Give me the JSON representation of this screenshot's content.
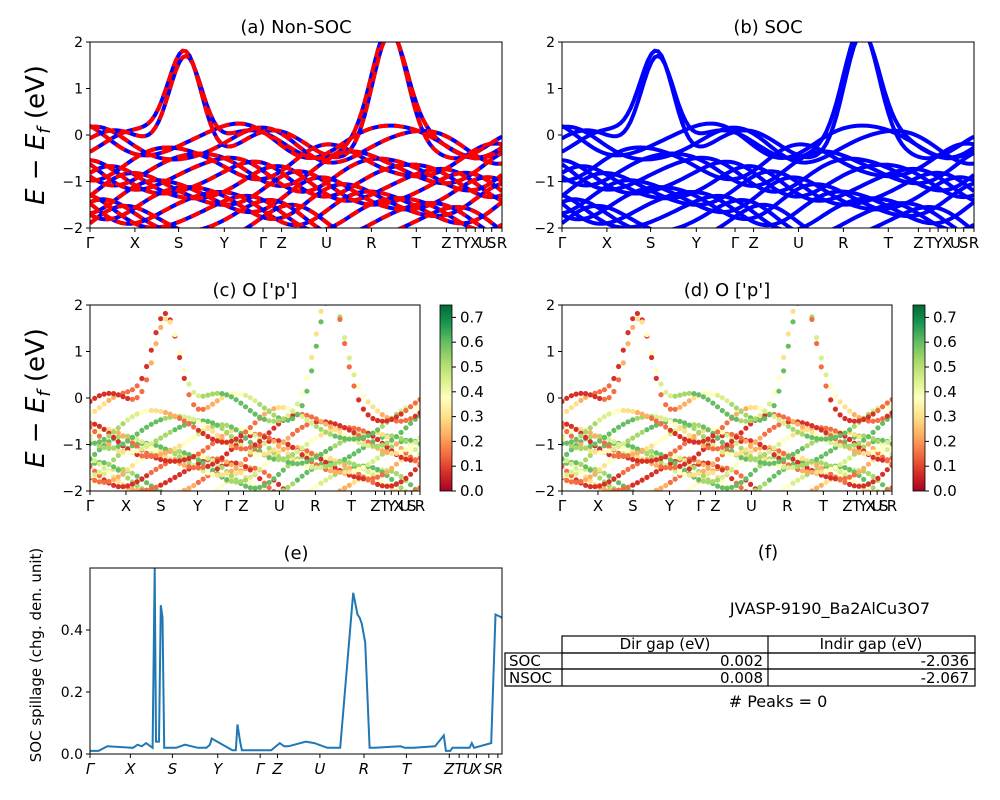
{
  "figure": {
    "ylabel_math": "E − E",
    "ylabel_sub": "f",
    "ylabel_unit": " (eV)"
  },
  "chart_data": [
    {
      "id": "a",
      "type": "line",
      "title": "(a) Non-SOC",
      "ylim": [
        -2,
        2
      ],
      "yticks": [
        "−2",
        "−1",
        "0",
        "1",
        "2"
      ],
      "xticks": [
        "Γ",
        "X",
        "S",
        "Y",
        "Γ",
        "Z",
        "U",
        "R",
        "T",
        "Z",
        "T",
        "Y",
        "X",
        "U",
        "S",
        "R"
      ],
      "kpath_positions": [
        0,
        1,
        2,
        3,
        4,
        4.3,
        5.3,
        6.3,
        7.3,
        8.3,
        8.55,
        8.75,
        8.95,
        9.15,
        9.35,
        9.5
      ],
      "series": [
        {
          "name": "",
          "color": "#ff0000",
          "style": "solid"
        },
        {
          "name": "",
          "color": "#0000ff",
          "style": "dashed"
        }
      ],
      "colors": {
        "primary": "#ff0000",
        "secondary": "#0000ff"
      }
    },
    {
      "id": "b",
      "type": "line",
      "title": "(b) SOC",
      "ylim": [
        -2,
        2
      ],
      "yticks": [
        "−2",
        "−1",
        "0",
        "1",
        "2"
      ],
      "xticks": [
        "Γ",
        "X",
        "S",
        "Y",
        "Γ",
        "Z",
        "U",
        "R",
        "T",
        "Z",
        "T",
        "Y",
        "X",
        "U",
        "S",
        "R"
      ],
      "colors": {
        "primary": "#0000ff"
      }
    },
    {
      "id": "c",
      "type": "scatter",
      "title": "(c)  O ['p']",
      "ylim": [
        -2,
        2
      ],
      "yticks": [
        "−2",
        "−1",
        "0",
        "1",
        "2"
      ],
      "xticks": [
        "Γ",
        "X",
        "S",
        "Y",
        "Γ",
        "Z",
        "U",
        "R",
        "T",
        "Z",
        "T",
        "Y",
        "X",
        "U",
        "S",
        "R"
      ],
      "colorbar": {
        "min": 0.0,
        "max": 0.75,
        "ticks": [
          "0.0",
          "0.1",
          "0.2",
          "0.3",
          "0.4",
          "0.5",
          "0.6",
          "0.7"
        ],
        "colormap": "RdYlGn"
      }
    },
    {
      "id": "d",
      "type": "scatter",
      "title": "(d) O ['p']",
      "ylim": [
        -2,
        2
      ],
      "yticks": [
        "−2",
        "−1",
        "0",
        "1",
        "2"
      ],
      "xticks": [
        "Γ",
        "X",
        "S",
        "Y",
        "Γ",
        "Z",
        "U",
        "R",
        "T",
        "Z",
        "T",
        "Y",
        "X",
        "U",
        "S",
        "R"
      ],
      "colorbar": {
        "min": 0.0,
        "max": 0.75,
        "ticks": [
          "0.0",
          "0.1",
          "0.2",
          "0.3",
          "0.4",
          "0.5",
          "0.6",
          "0.7"
        ],
        "colormap": "RdYlGn"
      }
    },
    {
      "id": "e",
      "type": "line",
      "title": "(e)",
      "ylabel": "SOC spillage (chg. den. unit)",
      "ylim": [
        0,
        0.6
      ],
      "yticks": [
        "0.0",
        "0.2",
        "0.4"
      ],
      "xticks": [
        "Γ",
        "X",
        "S",
        "Y",
        "Γ",
        "Z",
        "U",
        "R",
        "T",
        "Z",
        "T",
        "U",
        "X",
        "S",
        "R"
      ],
      "color": "#1f77b4",
      "x": [
        0,
        0.2,
        0.4,
        1.0,
        1.1,
        1.2,
        1.3,
        1.45,
        1.5,
        1.53,
        1.56,
        1.6,
        1.64,
        1.68,
        1.72,
        1.8,
        2.0,
        2.2,
        2.5,
        2.7,
        2.78,
        2.82,
        3.3,
        3.38,
        3.42,
        3.48,
        3.52,
        3.6,
        4.2,
        4.4,
        4.5,
        4.6,
        5.0,
        5.2,
        5.5,
        5.8,
        6.1,
        6.2,
        6.25,
        6.3,
        6.38,
        6.48,
        6.5,
        6.6,
        7.2,
        7.3,
        7.5,
        8.0,
        8.2,
        8.25,
        8.3,
        8.35,
        8.4,
        8.8,
        8.85,
        8.9,
        9.3,
        9.4,
        9.55
      ],
      "values": [
        0.01,
        0.01,
        0.025,
        0.02,
        0.03,
        0.025,
        0.035,
        0.02,
        0.6,
        0.04,
        0.04,
        0.04,
        0.48,
        0.44,
        0.02,
        0.02,
        0.02,
        0.03,
        0.02,
        0.02,
        0.03,
        0.05,
        0.012,
        0.012,
        0.095,
        0.04,
        0.012,
        0.012,
        0.012,
        0.035,
        0.025,
        0.025,
        0.04,
        0.035,
        0.02,
        0.02,
        0.52,
        0.45,
        0.44,
        0.42,
        0.36,
        0.02,
        0.02,
        0.02,
        0.025,
        0.02,
        0.02,
        0.025,
        0.06,
        0.01,
        0.01,
        0.01,
        0.02,
        0.02,
        0.035,
        0.02,
        0.035,
        0.45,
        0.44
      ]
    }
  ],
  "table": {
    "title": "(f)",
    "subtitle": "JVASP-9190_Ba2AlCu3O7",
    "columns": [
      "Dir gap (eV)",
      "Indir gap (eV)"
    ],
    "rows": [
      {
        "label": "SOC",
        "dir": "0.002",
        "indir": "-2.036"
      },
      {
        "label": "NSOC",
        "dir": "0.008",
        "indir": "-2.067"
      }
    ],
    "footer": "# Peaks = 0"
  }
}
